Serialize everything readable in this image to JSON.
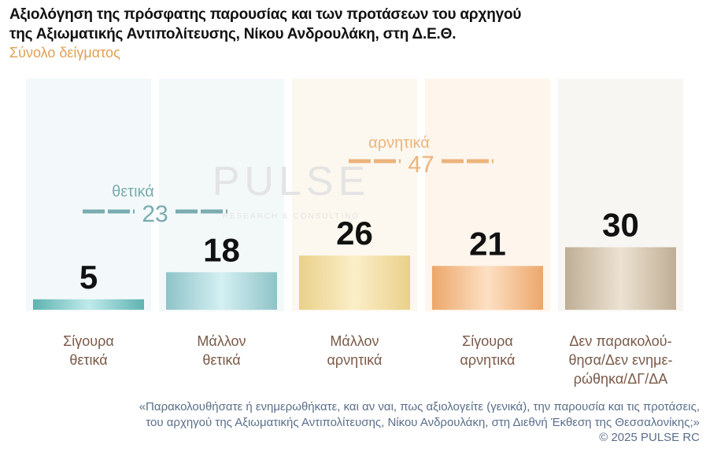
{
  "title_line1": "Αξιολόγηση της πρόσφατης παρουσίας και των προτάσεων του αρχηγού",
  "title_line2": "της Αξιωματικής Αντιπολίτευσης, Νίκου Ανδρουλάκη, στη Δ.Ε.Θ.",
  "subtitle": "Σύνολο δείγματος",
  "watermark": {
    "main": "PULSE",
    "sub": "RESEARCH & CONSULTING"
  },
  "chart_data": {
    "type": "bar",
    "categories": [
      [
        "Σίγουρα",
        "θετικά"
      ],
      [
        "Μάλλον",
        "θετικά"
      ],
      [
        "Μάλλον",
        "αρνητικά"
      ],
      [
        "Σίγουρα",
        "αρνητικά"
      ],
      [
        "Δεν παρακολού-",
        "θησα/Δεν ενημε-",
        "ρώθηκα/ΔΓ/ΔΑ"
      ]
    ],
    "values": [
      5,
      18,
      26,
      21,
      30
    ],
    "colors": [
      "#8fd0d0",
      "#a8d4d8",
      "#f0dca0",
      "#f0b47a",
      "#d2c2aa"
    ],
    "groups": [
      {
        "label": "θετικά",
        "value": 23,
        "color": "#7aacb0"
      },
      {
        "label": "αρνητικά",
        "value": 47,
        "color": "#ebb47c"
      }
    ]
  },
  "footnote_line1": "«Παρακολουθήσατε ή ενημερωθήκατε, και αν ναι, πως αξιολογείτε (γενικά), την παρουσία και τις προτάσεις,",
  "footnote_line2": "του αρχηγού της Αξιωματικής Αντιπολίτευσης, Νίκου Ανδρουλάκη, στη Διεθνή Έκθεση της Θεσσαλονίκης;»",
  "copyright": "©  2025  PULSE RC"
}
